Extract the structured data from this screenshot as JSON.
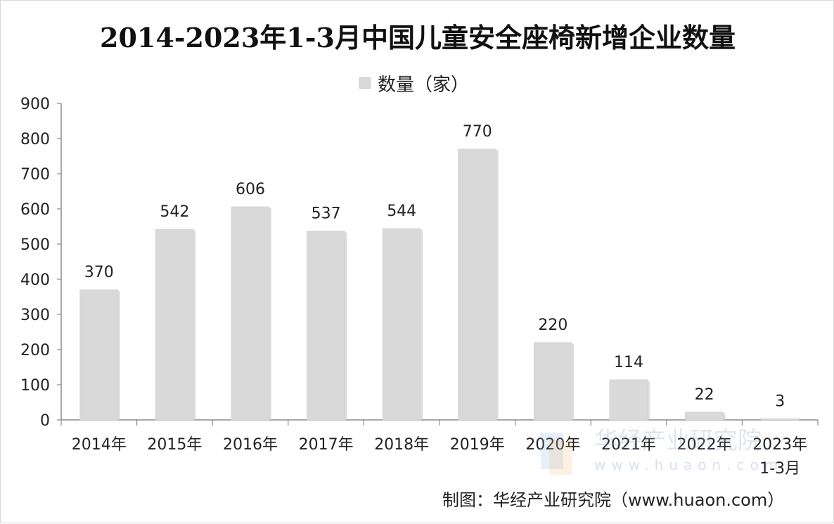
{
  "title": "2014-2023年1-3月中国儿童安全座椅新增企业数量",
  "source": "制图：华经产业研究院（www.huaon.com）",
  "watermark": {
    "text": "华经产业研究院",
    "url": "www.huaon.com"
  },
  "colors": {
    "bar": "#d9d9d9",
    "axis": "#8c8c8c",
    "text": "#222222"
  },
  "chart_data": {
    "type": "bar",
    "title": "2014-2023年1-3月中国儿童安全座椅新增企业数量",
    "xlabel": "",
    "ylabel": "",
    "categories": [
      "2014年",
      "2015年",
      "2016年",
      "2017年",
      "2018年",
      "2019年",
      "2020年",
      "2021年",
      "2022年",
      "2023年\n1-3月"
    ],
    "series": [
      {
        "name": "数量（家）",
        "values": [
          370,
          542,
          606,
          537,
          544,
          770,
          220,
          114,
          22,
          3
        ]
      }
    ],
    "ylim": [
      0,
      900
    ],
    "yticks": [
      0,
      100,
      200,
      300,
      400,
      500,
      600,
      700,
      800,
      900
    ],
    "grid": false,
    "legend": "top-center",
    "data_labels": true
  }
}
